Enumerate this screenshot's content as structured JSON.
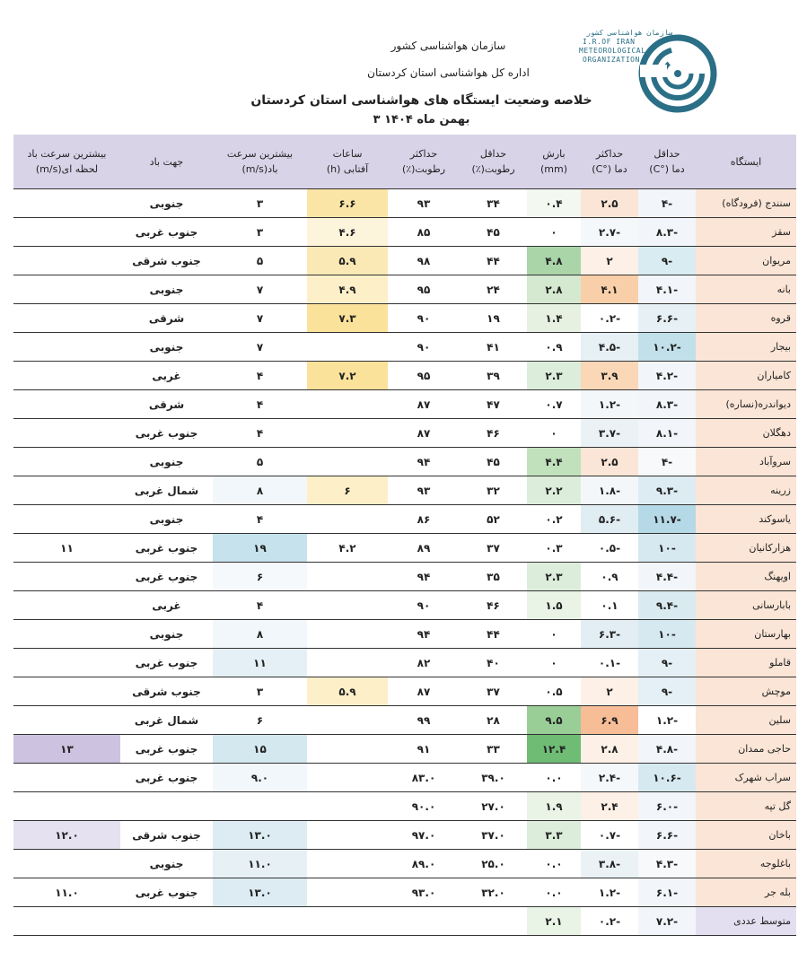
{
  "header": {
    "org": "سازمان هواشناسی کشور",
    "office": "اداره کل هواشناسی استان کردستان",
    "title": "خلاصه وضعیت ایستگاه های هواشناسی استان کردستان",
    "date": "۳ بهمن ماه ۱۴۰۴"
  },
  "logo": {
    "text_fa": "سازمان هواشناسی کشور",
    "line1": "I.R.OF IRAN",
    "line2": "METEOROLOGICAL",
    "line3": "ORGANIZATION"
  },
  "table": {
    "columns": [
      {
        "l1": "ایستگاه",
        "l2": ""
      },
      {
        "l1": "حداقل",
        "l2": "دما (°C)"
      },
      {
        "l1": "حداکثر",
        "l2": "دما (°C)"
      },
      {
        "l1": "بارش",
        "l2": "(mm)"
      },
      {
        "l1": "حداقل",
        "l2": "رطوبت(٪)"
      },
      {
        "l1": "حداکثر",
        "l2": "رطوبت(٪)"
      },
      {
        "l1": "ساعات",
        "l2": "آفتابی (h)"
      },
      {
        "l1": "بیشترین سرعت",
        "l2": "باد(m/s)"
      },
      {
        "l1": "جهت باد",
        "l2": ""
      },
      {
        "l1": "بیشترین سرعت باد",
        "l2": "لحظه ای(m/s)"
      }
    ],
    "rows": [
      [
        "سنندج (فرودگاه)",
        "-۴",
        "۲.۵",
        "۰.۴",
        "۳۴",
        "۹۳",
        "۶.۶",
        "۳",
        "جنوبی",
        ""
      ],
      [
        "سقز",
        "-۸.۳",
        "-۲.۷",
        "۰",
        "۴۵",
        "۸۵",
        "۴.۶",
        "۳",
        "جنوب غربی",
        ""
      ],
      [
        "مریوان",
        "-۹",
        "۲",
        "۴.۸",
        "۴۴",
        "۹۸",
        "۵.۹",
        "۵",
        "جنوب شرقی",
        ""
      ],
      [
        "بانه",
        "-۴.۱",
        "۴.۱",
        "۲.۸",
        "۲۴",
        "۹۵",
        "۴.۹",
        "۷",
        "جنوبی",
        ""
      ],
      [
        "قروه",
        "-۶.۶",
        "-۰.۲",
        "۱.۴",
        "۱۹",
        "۹۰",
        "۷.۳",
        "۷",
        "شرقی",
        ""
      ],
      [
        "بیجار",
        "-۱۰.۲",
        "-۴.۵",
        "۰.۹",
        "۴۱",
        "۹۰",
        "",
        "۷",
        "جنوبی",
        ""
      ],
      [
        "کامیاران",
        "-۴.۲",
        "۳.۹",
        "۲.۳",
        "۳۹",
        "۹۵",
        "۷.۲",
        "۴",
        "غربی",
        ""
      ],
      [
        "دیواندره(نساره)",
        "-۸.۳",
        "-۱.۲",
        "۰.۷",
        "۴۷",
        "۸۷",
        "",
        "۴",
        "شرقی",
        ""
      ],
      [
        "دهگلان",
        "-۸.۱",
        "-۳.۷",
        "۰",
        "۴۶",
        "۸۷",
        "",
        "۴",
        "جنوب غربی",
        ""
      ],
      [
        "سروآباد",
        "-۴",
        "۲.۵",
        "۴.۴",
        "۴۵",
        "۹۴",
        "",
        "۵",
        "جنوبی",
        ""
      ],
      [
        "زرینه",
        "-۹.۳",
        "-۱.۸",
        "۲.۲",
        "۳۲",
        "۹۳",
        "۶",
        "۸",
        "شمال غربی",
        ""
      ],
      [
        "یاسوکند",
        "-۱۱.۷",
        "-۵.۶",
        "۰.۲",
        "۵۲",
        "۸۶",
        "",
        "۴",
        "جنوبی",
        ""
      ],
      [
        "هزارکانیان",
        "-۱۰",
        "-۰.۵",
        "۰.۳",
        "۳۷",
        "۸۹",
        "۴.۲",
        "۱۹",
        "جنوب غربی",
        "۱۱"
      ],
      [
        "اویهنگ",
        "-۴.۴",
        "۰.۹",
        "۲.۳",
        "۳۵",
        "۹۴",
        "",
        "۶",
        "جنوب غربی",
        ""
      ],
      [
        "بابارسانی",
        "-۹.۴",
        "۰.۱",
        "۱.۵",
        "۴۶",
        "۹۰",
        "",
        "۴",
        "غربی",
        ""
      ],
      [
        "بهارستان",
        "-۱۰",
        "-۶.۳",
        "۰",
        "۴۴",
        "۹۴",
        "",
        "۸",
        "جنوبی",
        ""
      ],
      [
        "قاملو",
        "-۹",
        "-۰.۱",
        "۰",
        "۴۰",
        "۸۲",
        "",
        "۱۱",
        "جنوب غربی",
        ""
      ],
      [
        "موچش",
        "-۹",
        "۲",
        "۰.۵",
        "۳۷",
        "۸۷",
        "۵.۹",
        "۳",
        "جنوب شرقی",
        ""
      ],
      [
        "سلین",
        "-۱.۲",
        "۶.۹",
        "۹.۵",
        "۲۸",
        "۹۹",
        "",
        "۶",
        "شمال غربی",
        ""
      ],
      [
        "حاجی ممدان",
        "-۴.۸",
        "۲.۸",
        "۱۲.۴",
        "۳۳",
        "۹۱",
        "",
        "۱۵",
        "جنوب غربی",
        "۱۳"
      ],
      [
        "سراب شهرک",
        "-۱۰.۶",
        "-۲.۴",
        "۰.۰",
        "۳۹.۰",
        "۸۳.۰",
        "",
        "۹.۰",
        "جنوب غربی",
        ""
      ],
      [
        "گل تپه",
        "-۶.۰",
        "۲.۴",
        "۱.۹",
        "۲۷.۰",
        "۹۰.۰",
        "",
        "",
        "",
        ""
      ],
      [
        "باخان",
        "-۶.۶",
        "-۰.۷",
        "۳.۳",
        "۳۷.۰",
        "۹۷.۰",
        "",
        "۱۳.۰",
        "جنوب شرقی",
        "۱۲.۰"
      ],
      [
        "باغلوجه",
        "-۴.۳",
        "-۳.۸",
        "۰.۰",
        "۲۵.۰",
        "۸۹.۰",
        "",
        "۱۱.۰",
        "جنوبی",
        ""
      ],
      [
        "بله جر",
        "-۶.۱",
        "-۱.۲",
        "۰.۰",
        "۳۲.۰",
        "۹۳.۰",
        "",
        "۱۳.۰",
        "جنوب غربی",
        "۱۱.۰"
      ],
      [
        "متوسط عددی",
        "-۷.۲",
        "-۰.۲",
        "۲.۱",
        "",
        "",
        "",
        "",
        "",
        ""
      ]
    ],
    "colors": {
      "header_bg": "#d9d3e8",
      "station_bg": "#fbe5d6",
      "avg_bg": "#e4dff0"
    },
    "cell_colors": [
      [
        "#fbe5d6",
        "#f2f6fa",
        "#fbe5d6",
        "#f3f8f1",
        "",
        "",
        "#fbe5a6",
        "",
        "",
        ""
      ],
      [
        "#fbe5d6",
        "#f2f6fa",
        "#f5f8fb",
        "",
        "",
        "",
        "#fdf4dc",
        "",
        "",
        ""
      ],
      [
        "#fbe5d6",
        "#d9ecf1",
        "#fdf0e6",
        "#a9d5a9",
        "",
        "",
        "#fbe9b5",
        "",
        "",
        ""
      ],
      [
        "#fbe5d6",
        "#f2f6fa",
        "#f9cfa9",
        "#d4e9cf",
        "",
        "",
        "#fdf0c9",
        "",
        "",
        ""
      ],
      [
        "#fbe5d6",
        "#e7f1f5",
        "",
        "#e6f1e2",
        "",
        "",
        "#fbe29a",
        "",
        "",
        ""
      ],
      [
        "#fbe5d6",
        "#c2e0ea",
        "#e6f0f5",
        "",
        "",
        "",
        "",
        "",
        "",
        ""
      ],
      [
        "#fbe5d6",
        "#f2f6fa",
        "#fad7b7",
        "#dceedb",
        "",
        "",
        "#fbe29a",
        "",
        "",
        ""
      ],
      [
        "#fbe5d6",
        "#f2f6fa",
        "#f4f7fa",
        "",
        "",
        "",
        "",
        "",
        "",
        ""
      ],
      [
        "#fbe5d6",
        "#f2f6fa",
        "#eaf2f6",
        "",
        "",
        "",
        "",
        "",
        "",
        ""
      ],
      [
        "#fbe5d6",
        "#f7f9fb",
        "#fbe5d6",
        "#c1e1bd",
        "",
        "",
        "",
        "",
        "",
        ""
      ],
      [
        "#fbe5d6",
        "#dcecf2",
        "#f4f7fa",
        "#dceedb",
        "",
        "",
        "#fdf0c9",
        "#f1f7fa",
        "",
        ""
      ],
      [
        "#fbe5d6",
        "#b5d9e6",
        "#e0edf3",
        "",
        "",
        "",
        "",
        "",
        "",
        ""
      ],
      [
        "#fbe5d6",
        "#d7e9f0",
        "",
        "",
        "",
        "",
        "",
        "#c6e2ec",
        "",
        ""
      ],
      [
        "#fbe5d6",
        "#f2f6fa",
        "",
        "#dceedb",
        "",
        "",
        "",
        "#f5f9fb",
        "",
        ""
      ],
      [
        "#fbe5d6",
        "#d9ebf1",
        "",
        "#e9f3e6",
        "",
        "",
        "",
        "",
        "",
        ""
      ],
      [
        "#fbe5d6",
        "#d7e9f0",
        "#e2eef4",
        "",
        "",
        "",
        "",
        "#f1f7fa",
        "",
        ""
      ],
      [
        "#fbe5d6",
        "#e4f0f5",
        "",
        "",
        "",
        "",
        "",
        "#e4f0f5",
        "",
        ""
      ],
      [
        "#fbe5d6",
        "#e4f0f5",
        "#fdf0e6",
        "",
        "",
        "",
        "#fdf0c9",
        "",
        "",
        ""
      ],
      [
        "#fbe5d6",
        "",
        "#f6bd96",
        "#99ce96",
        "",
        "",
        "",
        "",
        "",
        ""
      ],
      [
        "#fbe5d6",
        "#f2f6fa",
        "#fdf0e6",
        "#6fbc75",
        "",
        "",
        "",
        "#d4e8f0",
        "",
        "#cdc3e0"
      ],
      [
        "#fbe5d6",
        "#d6e9f0",
        "#f5f8fb",
        "",
        "",
        "",
        "",
        "#f1f7fa",
        "",
        ""
      ],
      [
        "#fbe5d6",
        "#f2f6fa",
        "#fdf0e6",
        "#e9f3e6",
        "",
        "",
        "",
        "",
        "",
        ""
      ],
      [
        "#fbe5d6",
        "#f2f6fa",
        "",
        "#dceedb",
        "",
        "",
        "",
        "#dcecf2",
        "",
        "#e6e1f0"
      ],
      [
        "#fbe5d6",
        "#f7f9fb",
        "#eaf2f6",
        "",
        "",
        "",
        "",
        "#e7f1f5",
        "",
        ""
      ],
      [
        "#fbe5d6",
        "#f2f6fa",
        "",
        "",
        "",
        "",
        "",
        "#dcecf2",
        "",
        ""
      ],
      [
        "#e4dff0",
        "#f2f6fa",
        "",
        "#e9f3e6",
        "",
        "",
        "",
        "",
        "",
        ""
      ]
    ]
  }
}
